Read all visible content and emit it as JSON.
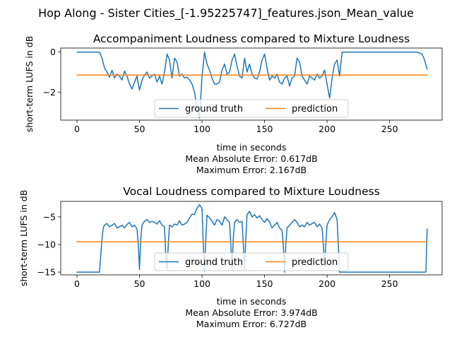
{
  "figure": {
    "suptitle": "Hop Along - Sister Cities_[-1.95225747]_features.json_Mean_value"
  },
  "chart_data": [
    {
      "type": "line",
      "title": "Accompaniment Loudness compared to Mixture Loudness",
      "xlabel": "time in seconds",
      "ylabel": "short-term LUFS in dB",
      "xlim": [
        -13,
        292
      ],
      "ylim": [
        -3.4,
        0.2
      ],
      "xticks": [
        0,
        50,
        100,
        150,
        200,
        250
      ],
      "yticks": [
        0,
        -2
      ],
      "grid": false,
      "legend": "bottom-center",
      "metrics": [
        "Mean Absolute Error: 0.617dB",
        "Maximum Error: 2.167dB"
      ],
      "series": [
        {
          "name": "ground truth",
          "color": "#1f77b4",
          "x": [
            0,
            18,
            20,
            22,
            24,
            26,
            28,
            30,
            32,
            34,
            36,
            38,
            40,
            42,
            44,
            46,
            48,
            50,
            52,
            54,
            56,
            58,
            60,
            62,
            64,
            66,
            68,
            70,
            72,
            74,
            76,
            78,
            80,
            82,
            84,
            86,
            88,
            90,
            92,
            94,
            96,
            98,
            100,
            102,
            104,
            106,
            108,
            110,
            112,
            114,
            116,
            118,
            120,
            122,
            124,
            126,
            128,
            130,
            132,
            134,
            136,
            138,
            140,
            142,
            144,
            146,
            148,
            150,
            152,
            154,
            156,
            158,
            160,
            162,
            164,
            166,
            168,
            170,
            172,
            174,
            176,
            178,
            180,
            182,
            184,
            186,
            188,
            190,
            192,
            194,
            196,
            198,
            200,
            202,
            204,
            206,
            208,
            210,
            212,
            230,
            262,
            268,
            272,
            276,
            278,
            280
          ],
          "values": [
            0,
            0,
            -0.3,
            -0.8,
            -1.0,
            -1.25,
            -0.9,
            -1.3,
            -1.1,
            -1.2,
            -1.4,
            -0.95,
            -1.2,
            -1.6,
            -1.85,
            -1.5,
            -1.2,
            -1.9,
            -1.4,
            -1.15,
            -1.0,
            -1.3,
            -1.2,
            -1.1,
            -1.5,
            -1.2,
            -1.6,
            -1.0,
            -0.1,
            -0.4,
            -1.3,
            -0.3,
            -0.5,
            -1.2,
            -1.1,
            -1.3,
            -1.25,
            -1.4,
            -1.6,
            -2.0,
            -2.8,
            -3.3,
            -1.2,
            0.0,
            -0.6,
            -0.9,
            -1.3,
            -1.6,
            -1.6,
            -1.5,
            -0.9,
            -0.6,
            -1.1,
            -1.0,
            -0.4,
            -0.1,
            -0.7,
            -1.2,
            -1.3,
            -0.3,
            -1.0,
            -0.6,
            -1.1,
            -1.3,
            -1.35,
            -1.0,
            -0.4,
            -0.1,
            -0.8,
            -1.4,
            -1.2,
            -1.3,
            -1.1,
            -1.5,
            -1.6,
            -1.3,
            -1.2,
            -1.7,
            -1.3,
            -1.2,
            -0.3,
            -0.5,
            -1.2,
            -1.4,
            -1.6,
            -1.2,
            -1.3,
            -1.4,
            -1.1,
            -1.3,
            -1.2,
            -0.9,
            -1.6,
            -2.3,
            -1.3,
            -0.6,
            -0.4,
            -1.2,
            0,
            0,
            0,
            0,
            0,
            -0.1,
            -0.4,
            -0.85
          ]
        },
        {
          "name": "prediction",
          "color": "#ff7f0e",
          "x": [
            0,
            280
          ],
          "values": [
            -1.15,
            -1.15
          ]
        }
      ]
    },
    {
      "type": "line",
      "title": "Vocal Loudness compared to Mixture Loudness",
      "xlabel": "time in seconds",
      "ylabel": "short-term LUFS in dB",
      "xlim": [
        -13,
        292
      ],
      "ylim": [
        -15.5,
        -2.2
      ],
      "xticks": [
        0,
        50,
        100,
        150,
        200,
        250
      ],
      "yticks": [
        -5,
        -10,
        -15
      ],
      "grid": false,
      "legend": "bottom-center",
      "metrics": [
        "Mean Absolute Error: 3.974dB",
        "Maximum Error: 6.727dB"
      ],
      "series": [
        {
          "name": "ground truth",
          "color": "#1f77b4",
          "x": [
            0,
            18,
            19,
            20,
            21,
            22,
            24,
            26,
            28,
            30,
            32,
            34,
            36,
            38,
            40,
            42,
            44,
            46,
            48,
            49,
            50,
            51,
            52,
            54,
            56,
            58,
            60,
            62,
            64,
            66,
            68,
            70,
            71,
            72,
            73,
            74,
            76,
            78,
            80,
            82,
            84,
            86,
            88,
            90,
            92,
            94,
            96,
            98,
            100,
            101,
            102,
            103,
            104,
            106,
            108,
            110,
            112,
            114,
            116,
            118,
            120,
            122,
            123,
            124,
            125,
            126,
            128,
            130,
            132,
            133,
            134,
            135,
            136,
            138,
            140,
            142,
            144,
            146,
            148,
            150,
            152,
            154,
            156,
            158,
            160,
            162,
            164,
            165,
            166,
            167,
            168,
            170,
            172,
            174,
            176,
            178,
            180,
            182,
            184,
            186,
            188,
            190,
            192,
            194,
            196,
            197,
            198,
            199,
            200,
            202,
            204,
            206,
            208,
            209,
            210,
            211,
            212,
            240,
            279,
            280
          ],
          "values": [
            -15,
            -15,
            -12,
            -9,
            -7,
            -6.5,
            -6.2,
            -6.8,
            -6.5,
            -6.2,
            -7.0,
            -6.8,
            -6.5,
            -7.0,
            -6.4,
            -6.0,
            -6.8,
            -6.5,
            -7.2,
            -10,
            -14.5,
            -9,
            -6.5,
            -5.8,
            -5.5,
            -6.0,
            -5.8,
            -6.0,
            -6.3,
            -5.7,
            -6.5,
            -6.8,
            -12,
            -14.5,
            -10,
            -6.5,
            -6.8,
            -6.3,
            -6.5,
            -5.7,
            -6.5,
            -6.3,
            -6.0,
            -5.2,
            -4.5,
            -4.6,
            -3.4,
            -2.8,
            -3.5,
            -10,
            -14.8,
            -9,
            -4.7,
            -5.2,
            -5.8,
            -6.5,
            -5.5,
            -5.8,
            -6.5,
            -5.0,
            -5.5,
            -6.0,
            -10,
            -14.5,
            -9,
            -6.0,
            -5.5,
            -6.0,
            -5.8,
            -10,
            -14.5,
            -9,
            -4.6,
            -4.0,
            -5.0,
            -4.6,
            -5.2,
            -4.8,
            -5.5,
            -6.0,
            -5.3,
            -6.0,
            -7.0,
            -6.5,
            -6.0,
            -7.0,
            -7.5,
            -10,
            -15,
            -10,
            -7.0,
            -6.5,
            -6.0,
            -5.5,
            -6.0,
            -6.8,
            -6.5,
            -6.8,
            -6.0,
            -6.5,
            -6.2,
            -6.0,
            -6.8,
            -6.3,
            -7.0,
            -10,
            -14,
            -10,
            -6.5,
            -5.5,
            -5.0,
            -4.2,
            -5.5,
            -10,
            -15,
            -15,
            -15,
            -15,
            -15,
            -7.2
          ]
        },
        {
          "name": "prediction",
          "color": "#ff7f0e",
          "x": [
            0,
            280
          ],
          "values": [
            -9.5,
            -9.5
          ]
        }
      ]
    }
  ]
}
